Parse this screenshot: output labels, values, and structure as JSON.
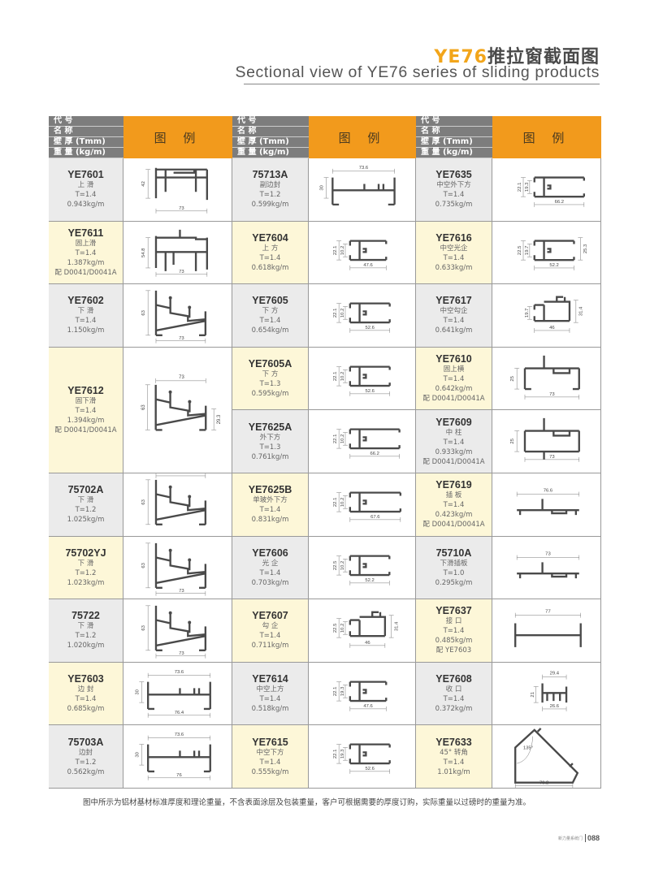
{
  "title": {
    "accent": "YE76",
    "cn": "推拉窗截面图",
    "en": "Sectional view of YE76 series of sliding products"
  },
  "header": {
    "code": "代 号",
    "name": "名 称",
    "thickness": "壁 厚 (Tmm)",
    "weight": "重 量 (kg/m)",
    "figure": "图 例"
  },
  "colors": {
    "header_gray": "#7d7d7d",
    "header_orange": "#f29a1c",
    "row_gray": "#ebebeb",
    "row_yellow": "#fdf7d8",
    "title_accent": "#f2a51a"
  },
  "columns": [
    {
      "rows": [
        {
          "code": "YE7601",
          "name": "上 滑",
          "t": "T=1.4",
          "weight": "0.943kg/m",
          "tone": "gray",
          "shape": "top-rail",
          "dims": {
            "h": "42",
            "w": "73"
          }
        },
        {
          "code": "YE7611",
          "name": "固上滑",
          "t": "T=1.4",
          "weight": "1.387kg/m",
          "extra": "配 D0041/D0041A",
          "tone": "yellow",
          "shape": "top-rail2",
          "dims": {
            "h": "54.8",
            "w": "73"
          }
        },
        {
          "code": "YE7602",
          "name": "下 滑",
          "t": "T=1.4",
          "weight": "1.150kg/m",
          "tone": "gray",
          "shape": "sill",
          "dims": {
            "h": "63",
            "w": "73"
          }
        },
        {
          "code": "YE7612",
          "name": "固下滑",
          "t": "T=1.4",
          "weight": "1.394kg/m",
          "extra": "配 D0041/D0041A",
          "tone": "yellow",
          "span": 2,
          "shape": "sill-fixed",
          "dims": {
            "h": "63",
            "wt": "73",
            "r": "29.3"
          }
        },
        {
          "code": "75702A",
          "name": "下 滑",
          "t": "T=1.2",
          "weight": "1.025kg/m",
          "tone": "gray",
          "shape": "sill",
          "dims": {
            "h": "63",
            "wt": "73"
          }
        },
        {
          "code": "75702YJ",
          "name": "下 滑",
          "t": "T=1.2",
          "weight": "1.023kg/m",
          "tone": "yellow",
          "shape": "sill",
          "dims": {
            "h": "63",
            "w": "73"
          }
        },
        {
          "code": "75722",
          "name": "下 滑",
          "t": "T=1.2",
          "weight": "1.020kg/m",
          "tone": "gray",
          "shape": "sill",
          "dims": {
            "h": "63",
            "w": "73"
          }
        },
        {
          "code": "YE7603",
          "name": "边 封",
          "t": "T=1.4",
          "weight": "0.685kg/m",
          "tone": "yellow",
          "shape": "seal",
          "dims": {
            "wt": "73.6",
            "h": "30",
            "w": "76.4"
          }
        },
        {
          "code": "75703A",
          "name": "边封",
          "t": "T=1.2",
          "weight": "0.562kg/m",
          "tone": "gray",
          "shape": "seal",
          "dims": {
            "wt": "73.6",
            "h": "30",
            "w": "76"
          }
        }
      ]
    },
    {
      "rows": [
        {
          "code": "75713A",
          "name": "副边封",
          "t": "T=1.2",
          "weight": "0.599kg/m",
          "tone": "gray",
          "shape": "seal",
          "dims": {
            "wt": "73.6",
            "h": "30"
          }
        },
        {
          "code": "YE7604",
          "name": "上 方",
          "t": "T=1.4",
          "weight": "0.618kg/m",
          "tone": "yellow",
          "shape": "sash",
          "dims": {
            "h": "22.1",
            "h2": "10.2",
            "w": "47.6"
          }
        },
        {
          "code": "YE7605",
          "name": "下 方",
          "t": "T=1.4",
          "weight": "0.654kg/m",
          "tone": "gray",
          "shape": "sash",
          "dims": {
            "h": "22.1",
            "h2": "10.2",
            "w": "52.6"
          }
        },
        {
          "code": "YE7605A",
          "name": "下 方",
          "t": "T=1.3",
          "weight": "0.595kg/m",
          "tone": "yellow",
          "shape": "sash",
          "dims": {
            "h": "22.1",
            "h2": "10.2",
            "w": "52.6"
          }
        },
        {
          "code": "YE7625A",
          "name": "外下方",
          "t": "T=1.3",
          "weight": "0.761kg/m",
          "tone": "gray",
          "shape": "sash",
          "dims": {
            "h": "22.1",
            "h2": "10.2",
            "w": "66.2"
          }
        },
        {
          "code": "YE7625B",
          "name": "单玻外下方",
          "t": "T=1.4",
          "weight": "0.831kg/m",
          "tone": "yellow",
          "shape": "sash",
          "dims": {
            "h": "22.1",
            "h2": "10.2",
            "w": "67.6"
          }
        },
        {
          "code": "YE7606",
          "name": "光 企",
          "t": "T=1.4",
          "weight": "0.703kg/m",
          "tone": "gray",
          "shape": "sash",
          "dims": {
            "h": "22.5",
            "h2": "10.2",
            "w": "52.2"
          }
        },
        {
          "code": "YE7607",
          "name": "勾 企",
          "t": "T=1.4",
          "weight": "0.711kg/m",
          "tone": "yellow",
          "shape": "hook",
          "dims": {
            "h": "22.5",
            "h2": "10.2",
            "w": "46",
            "r": "31.4"
          }
        },
        {
          "code": "YE7614",
          "name": "中空上方",
          "t": "T=1.4",
          "weight": "0.518kg/m",
          "tone": "gray",
          "shape": "sash",
          "dims": {
            "h": "22.1",
            "h2": "19.3",
            "w": "47.6"
          }
        },
        {
          "code": "YE7615",
          "name": "中空下方",
          "t": "T=1.4",
          "weight": "0.555kg/m",
          "tone": "yellow",
          "shape": "sash",
          "dims": {
            "h": "22.1",
            "h2": "19.3",
            "w": "52.6"
          }
        }
      ]
    },
    {
      "rows": [
        {
          "code": "YE7635",
          "name": "中空外下方",
          "t": "T=1.4",
          "weight": "0.735kg/m",
          "tone": "gray",
          "shape": "sash",
          "dims": {
            "h": "22.1",
            "h2": "19.3",
            "w": "66.2"
          }
        },
        {
          "code": "YE7616",
          "name": "中空光企",
          "t": "T=1.4",
          "weight": "0.633kg/m",
          "tone": "yellow",
          "shape": "sash",
          "dims": {
            "h": "22.5",
            "h2": "19.7",
            "w": "52.2",
            "r": "25.3"
          }
        },
        {
          "code": "YE7617",
          "name": "中空勾企",
          "t": "T=1.4",
          "weight": "0.641kg/m",
          "tone": "gray",
          "shape": "hook",
          "dims": {
            "h2": "19.7",
            "w": "46",
            "r": "31.4"
          }
        },
        {
          "code": "YE7610",
          "name": "固上横",
          "t": "T=1.4",
          "weight": "0.642kg/m",
          "extra": "配 D0041/D0041A",
          "tone": "yellow",
          "shape": "transom",
          "dims": {
            "h": "25",
            "w": "73"
          }
        },
        {
          "code": "YE7609",
          "name": "中 柱",
          "t": "T=1.4",
          "weight": "0.933kg/m",
          "extra": "配 D0041/D0041A",
          "tone": "gray",
          "shape": "mullion",
          "dims": {
            "h": "25",
            "w": "73"
          }
        },
        {
          "code": "YE7619",
          "name": "插 板",
          "t": "T=1.4",
          "weight": "0.423kg/m",
          "extra": "配 D0041/D0041A",
          "tone": "yellow",
          "shape": "plate",
          "dims": {
            "wt": "76.6"
          }
        },
        {
          "code": "75710A",
          "name": "下滑插板",
          "t": "T=1.0",
          "weight": "0.295kg/m",
          "tone": "gray",
          "shape": "plate",
          "dims": {
            "wt": "73"
          }
        },
        {
          "code": "YE7637",
          "name": "接 口",
          "t": "T=1.4",
          "weight": "0.485kg/m",
          "extra": "配 YE7603",
          "tone": "yellow",
          "shape": "joint",
          "dims": {
            "wt": "77"
          }
        },
        {
          "code": "YE7608",
          "name": "收 口",
          "t": "T=1.4",
          "weight": "0.372kg/m",
          "tone": "gray",
          "shape": "small",
          "dims": {
            "wt": "29.4",
            "h": "21",
            "w": "26.6"
          }
        },
        {
          "code": "YE7633",
          "name": "45°  转角",
          "t": "T=1.4",
          "weight": "1.01kg/m",
          "tone": "yellow",
          "shape": "corner",
          "dims": {
            "a": "135°",
            "w": "76.2"
          }
        }
      ]
    }
  ],
  "note": "图中所示为铝材基材标准厚度和理论重量，不含表面涂层及包装重量，客户可根据需要的厚度订购，实际重量以过磅时的重量为准。",
  "footer": {
    "brand": "新力量系统门",
    "page": "088"
  }
}
